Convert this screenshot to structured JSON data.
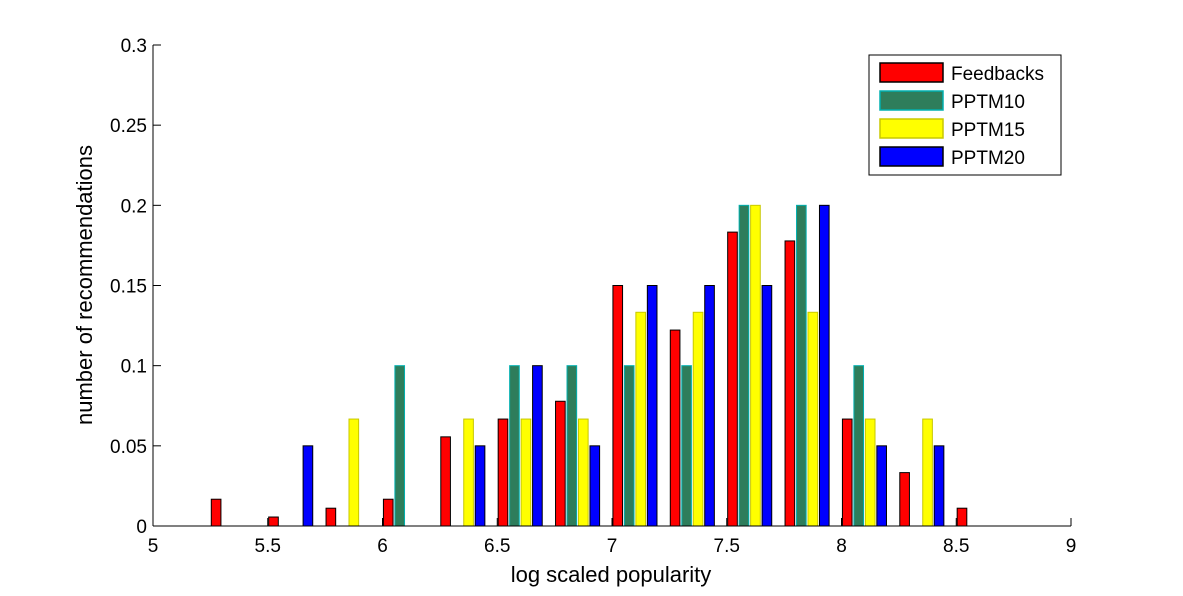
{
  "chart_data": {
    "type": "bar",
    "title": "",
    "xlabel": "log scaled popularity",
    "ylabel": "number of recommendations",
    "xlim": [
      5,
      9
    ],
    "ylim": [
      0,
      0.3
    ],
    "xticks": [
      "5",
      "5.5",
      "6",
      "6.5",
      "7",
      "7.5",
      "8",
      "8.5",
      "9"
    ],
    "yticks": [
      "0",
      "0.05",
      "0.1",
      "0.15",
      "0.2",
      "0.25",
      "0.3"
    ],
    "grid": false,
    "legend_position": "top-right",
    "group_centers": [
      5.1,
      5.35,
      5.6,
      5.85,
      6.1,
      6.35,
      6.6,
      6.85,
      7.1,
      7.35,
      7.6,
      7.85,
      8.1,
      8.35,
      8.6,
      8.85
    ],
    "series": [
      {
        "name": "Feedbacks",
        "color": "#ff0000",
        "edge": "#000000",
        "values": [
          0,
          0.0167,
          0.0056,
          0.0111,
          0.0167,
          0.0556,
          0.0667,
          0.0778,
          0.15,
          0.1222,
          0.1833,
          0.1778,
          0.0667,
          0.0333,
          0.0111,
          0
        ]
      },
      {
        "name": "PPTM10",
        "color": "#2e7d5b",
        "edge": "#00b0b0",
        "values": [
          0,
          0,
          0,
          0,
          0.1,
          0,
          0.1,
          0.1,
          0.1,
          0.1,
          0.2,
          0.2,
          0.1,
          0,
          0,
          0
        ]
      },
      {
        "name": "PPTM15",
        "color": "#ffff00",
        "edge": "#c8c800",
        "values": [
          0,
          0,
          0,
          0.0667,
          0,
          0.0667,
          0.0667,
          0.0667,
          0.1333,
          0.1333,
          0.2,
          0.1333,
          0.0667,
          0.0667,
          0,
          0
        ]
      },
      {
        "name": "PPTM20",
        "color": "#0000ff",
        "edge": "#000000",
        "values": [
          0,
          0,
          0.05,
          0,
          0,
          0.05,
          0.1,
          0.05,
          0.15,
          0.15,
          0.15,
          0.2,
          0.05,
          0.05,
          0,
          0
        ]
      }
    ]
  }
}
